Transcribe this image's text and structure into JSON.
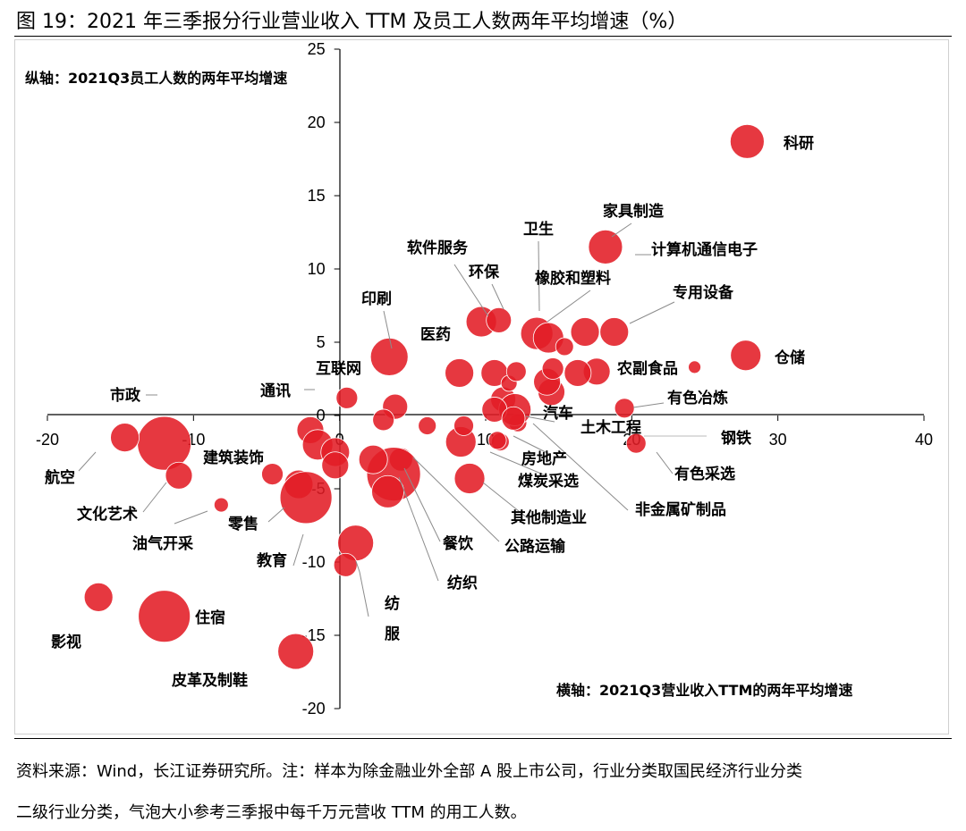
{
  "figure": {
    "title": "图 19：2021 年三季报分行业营业收入 TTM 及员工人数两年平均增速（%）",
    "source_line1": "资料来源：Wind，长江证券研究所。注：样本为除金融业外全部 A 股上市公司，行业分类取国民经济行业分类",
    "source_line2": "二级行业分类，气泡大小参考三季报中每千万元营收 TTM 的用工人数。"
  },
  "chart_data": {
    "type": "scatter",
    "subtype": "bubble",
    "title": "2021 年三季报分行业营业收入 TTM 及员工人数两年平均增速（%）",
    "xlabel": "横轴：2021Q3营业收入TTM的两年平均增速",
    "ylabel": "纵轴：2021Q3员工人数的两年平均增速",
    "xlim": [
      -20,
      40
    ],
    "ylim": [
      -20,
      25
    ],
    "xticks": [
      -20,
      -10,
      0,
      10,
      20,
      30,
      40
    ],
    "yticks": [
      -20,
      -15,
      -10,
      -5,
      0,
      5,
      10,
      15,
      20,
      25
    ],
    "bubble_color": "#e21d25",
    "points": [
      {
        "name": "科研",
        "x": 27.9,
        "y": 18.7,
        "size": 19
      },
      {
        "name": "家具制造",
        "x": 18.2,
        "y": 11.5,
        "size": 19
      },
      {
        "name": "计算机通信电子",
        "x": 16.8,
        "y": 5.7,
        "size": 16
      },
      {
        "name": "专用设备",
        "x": 18.8,
        "y": 5.7,
        "size": 16
      },
      {
        "name": "卫生",
        "x": 13.5,
        "y": 5.6,
        "size": 18
      },
      {
        "name": "橡胶和塑料",
        "x": 14.3,
        "y": 5.3,
        "size": 17
      },
      {
        "name": "软件服务",
        "x": 9.7,
        "y": 6.4,
        "size": 17
      },
      {
        "name": "环保",
        "x": 10.9,
        "y": 6.5,
        "size": 14
      },
      {
        "name": "仓储",
        "x": 27.8,
        "y": 4.1,
        "size": 17
      },
      {
        "name": "农副食品",
        "x": 17.6,
        "y": 3.0,
        "size": 15
      },
      {
        "name": "印刷",
        "x": 3.4,
        "y": 4.0,
        "size": 21
      },
      {
        "name": "医药",
        "x": 8.2,
        "y": 2.9,
        "size": 16
      },
      {
        "name": "互联网",
        "x": 0.5,
        "y": 1.2,
        "size": 12
      },
      {
        "name": "通讯",
        "x": 3.8,
        "y": 0.6,
        "size": 14
      },
      {
        "name": "有色冶炼",
        "x": 19.5,
        "y": 0.5,
        "size": 11
      },
      {
        "name": "汽车",
        "x": 11.2,
        "y": 1.1,
        "size": 14
      },
      {
        "name": "土木工程",
        "x": 12.2,
        "y": -0.5,
        "size": 10
      },
      {
        "name": "钢铁",
        "x": 24.3,
        "y": 3.3,
        "size": 7
      },
      {
        "name": "有色采选",
        "x": 20.3,
        "y": -1.9,
        "size": 11
      },
      {
        "name": "房地产",
        "x": 8.3,
        "y": -1.8,
        "size": 17
      },
      {
        "name": "煤炭采选",
        "x": 8.9,
        "y": -4.3,
        "size": 17
      },
      {
        "name": "其他制造业",
        "x": 11.0,
        "y": -1.8,
        "size": 10
      },
      {
        "name": "非金属矿制品",
        "x": 12.0,
        "y": 0.4,
        "size": 18
      },
      {
        "name": "市政",
        "x": -12.0,
        "y": -1.9,
        "size": 30
      },
      {
        "name": "航空",
        "x": -14.7,
        "y": -1.5,
        "size": 16
      },
      {
        "name": "文化艺术",
        "x": -11.0,
        "y": -4.1,
        "size": 15
      },
      {
        "name": "建筑装饰",
        "x": -4.6,
        "y": -4.0,
        "size": 12
      },
      {
        "name": "油气开采",
        "x": -8.1,
        "y": -6.1,
        "size": 8
      },
      {
        "name": "零售",
        "x": -2.8,
        "y": -4.7,
        "size": 16
      },
      {
        "name": "教育",
        "x": -2.3,
        "y": -5.6,
        "size": 29
      },
      {
        "name": "餐饮",
        "x": 4.2,
        "y": -3.0,
        "size": 13
      },
      {
        "name": "公路运输",
        "x": 3.7,
        "y": -4.0,
        "size": 30
      },
      {
        "name": "纺织",
        "x": 3.3,
        "y": -5.2,
        "size": 18
      },
      {
        "name": "纺服",
        "x": 1.1,
        "y": -8.7,
        "size": 20
      },
      {
        "name": "影视",
        "x": -16.5,
        "y": -12.4,
        "size": 16
      },
      {
        "name": "住宿",
        "x": -12.0,
        "y": -13.7,
        "size": 29
      },
      {
        "name": "皮革及制鞋",
        "x": -3.0,
        "y": -16.1,
        "size": 20
      },
      {
        "name": "",
        "x": -2.0,
        "y": -1.0,
        "size": 15
      },
      {
        "name": "",
        "x": -1.5,
        "y": -2.0,
        "size": 17
      },
      {
        "name": "",
        "x": -0.3,
        "y": -2.5,
        "size": 16
      },
      {
        "name": "",
        "x": -0.3,
        "y": -3.4,
        "size": 15
      },
      {
        "name": "",
        "x": 0.4,
        "y": -10.2,
        "size": 13
      },
      {
        "name": "",
        "x": 3.0,
        "y": -0.3,
        "size": 12
      },
      {
        "name": "",
        "x": 6.0,
        "y": -0.7,
        "size": 10
      },
      {
        "name": "",
        "x": 8.5,
        "y": -0.7,
        "size": 11
      },
      {
        "name": "",
        "x": 2.3,
        "y": -3.0,
        "size": 16
      },
      {
        "name": "",
        "x": 10.6,
        "y": 0.4,
        "size": 14
      },
      {
        "name": "",
        "x": 10.6,
        "y": 2.9,
        "size": 15
      },
      {
        "name": "",
        "x": 11.6,
        "y": 2.2,
        "size": 9
      },
      {
        "name": "",
        "x": 12.1,
        "y": 3.0,
        "size": 11
      },
      {
        "name": "",
        "x": 11.9,
        "y": -0.2,
        "size": 13
      },
      {
        "name": "",
        "x": 10.8,
        "y": -1.7,
        "size": 10
      },
      {
        "name": "",
        "x": 14.5,
        "y": 1.6,
        "size": 15
      },
      {
        "name": "",
        "x": 14.2,
        "y": 2.3,
        "size": 15
      },
      {
        "name": "",
        "x": 14.6,
        "y": 3.2,
        "size": 12
      },
      {
        "name": "",
        "x": 16.3,
        "y": 2.9,
        "size": 15
      },
      {
        "name": "",
        "x": 15.4,
        "y": 4.7,
        "size": 10
      }
    ]
  }
}
